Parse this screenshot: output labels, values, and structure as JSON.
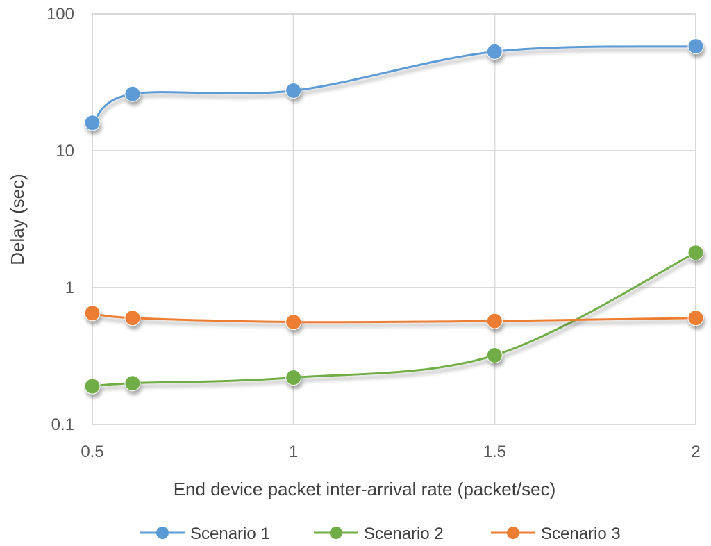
{
  "chart_data": {
    "type": "line",
    "xlabel": "End device packet inter-arrival rate (packet/sec)",
    "ylabel": "Delay (sec)",
    "y_scale": "log",
    "xlim": [
      0.5,
      2
    ],
    "ylim": [
      0.1,
      100
    ],
    "x_ticks": [
      "0.5",
      "1",
      "1.5",
      "2"
    ],
    "y_ticks": [
      "0.1",
      "1",
      "10",
      "100"
    ],
    "grid": true,
    "legend_position": "bottom",
    "series": [
      {
        "name": "Scenario 1",
        "color": "#5b9bd5",
        "x": [
          0.5,
          0.6,
          1,
          1.5,
          2
        ],
        "y": [
          16,
          26,
          27.5,
          53,
          58
        ]
      },
      {
        "name": "Scenario 2",
        "color": "#70ad47",
        "x": [
          0.5,
          0.6,
          1,
          1.5,
          2
        ],
        "y": [
          0.19,
          0.2,
          0.22,
          0.32,
          1.8
        ]
      },
      {
        "name": "Scenario 3",
        "color": "#ed7d31",
        "x": [
          0.5,
          0.6,
          1,
          1.5,
          2
        ],
        "y": [
          0.65,
          0.6,
          0.56,
          0.57,
          0.6
        ]
      }
    ]
  }
}
